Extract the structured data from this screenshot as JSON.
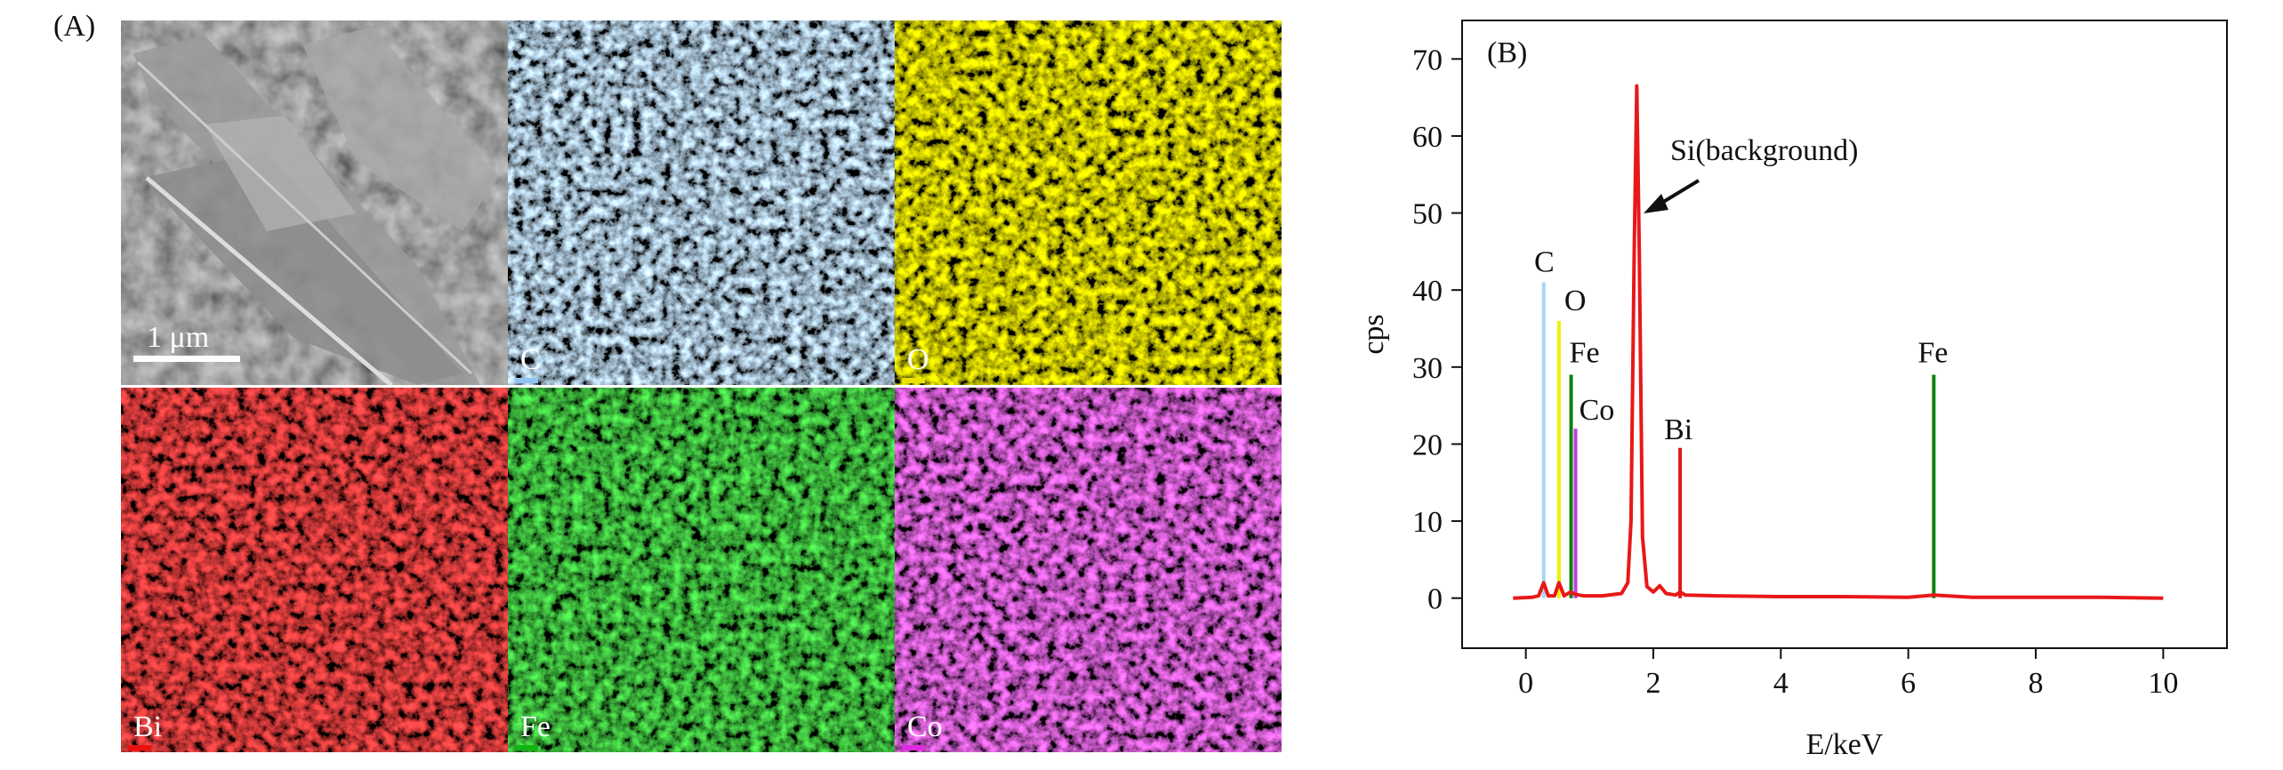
{
  "panel_a": {
    "label": "(A)",
    "scale_bar": "1 μm",
    "maps": [
      {
        "element": "C",
        "color": "#8fc4f2"
      },
      {
        "element": "O",
        "color": "#ece400"
      },
      {
        "element": "Bi",
        "color": "#ee1010"
      },
      {
        "element": "Fe",
        "color": "#12b412"
      },
      {
        "element": "Co",
        "color": "#e028e0"
      }
    ]
  },
  "chart_data": {
    "type": "line",
    "panel_label": "(B)",
    "x_label": "E/keV",
    "y_label": "cps",
    "xlim": [
      -1,
      11
    ],
    "ylim": [
      -6.5,
      75
    ],
    "xticks": [
      0,
      2,
      4,
      6,
      8,
      10
    ],
    "yticks": [
      0,
      10,
      20,
      30,
      40,
      50,
      60,
      70
    ],
    "annotation": "Si(background)",
    "series": [
      {
        "color": "#e81818",
        "x": [
          -0.2,
          0.1,
          0.2,
          0.28,
          0.35,
          0.45,
          0.52,
          0.6,
          0.7,
          0.78,
          0.9,
          1.2,
          1.5,
          1.6,
          1.65,
          1.7,
          1.74,
          1.78,
          1.83,
          1.9,
          2.0,
          2.1,
          2.2,
          2.35,
          2.42,
          2.5,
          3,
          4,
          5,
          6,
          6.4,
          7,
          8,
          9,
          10
        ],
        "values": [
          0,
          0.1,
          0.3,
          2.0,
          0.3,
          0.3,
          2.0,
          0.3,
          0.8,
          0.5,
          0.3,
          0.3,
          0.6,
          2,
          10,
          45,
          66.5,
          45,
          8,
          1.5,
          0.8,
          1.6,
          0.6,
          0.4,
          0.8,
          0.4,
          0.3,
          0.2,
          0.2,
          0.1,
          0.4,
          0.1,
          0.1,
          0.1,
          0
        ]
      }
    ],
    "peaks": [
      {
        "label": "C",
        "x": 0.28,
        "height": 41,
        "color": "#a8d4f4"
      },
      {
        "label": "O",
        "x": 0.52,
        "height": 36,
        "color": "#f0f000"
      },
      {
        "label": "Fe",
        "x": 0.71,
        "height": 29,
        "color": "#108010"
      },
      {
        "label": "Co",
        "x": 0.78,
        "height": 22,
        "color": "#c040e0"
      },
      {
        "label": "Bi",
        "x": 2.42,
        "height": 19.5,
        "color": "#e01818"
      },
      {
        "label": "Fe",
        "x": 6.4,
        "height": 29,
        "color": "#108010"
      }
    ]
  }
}
